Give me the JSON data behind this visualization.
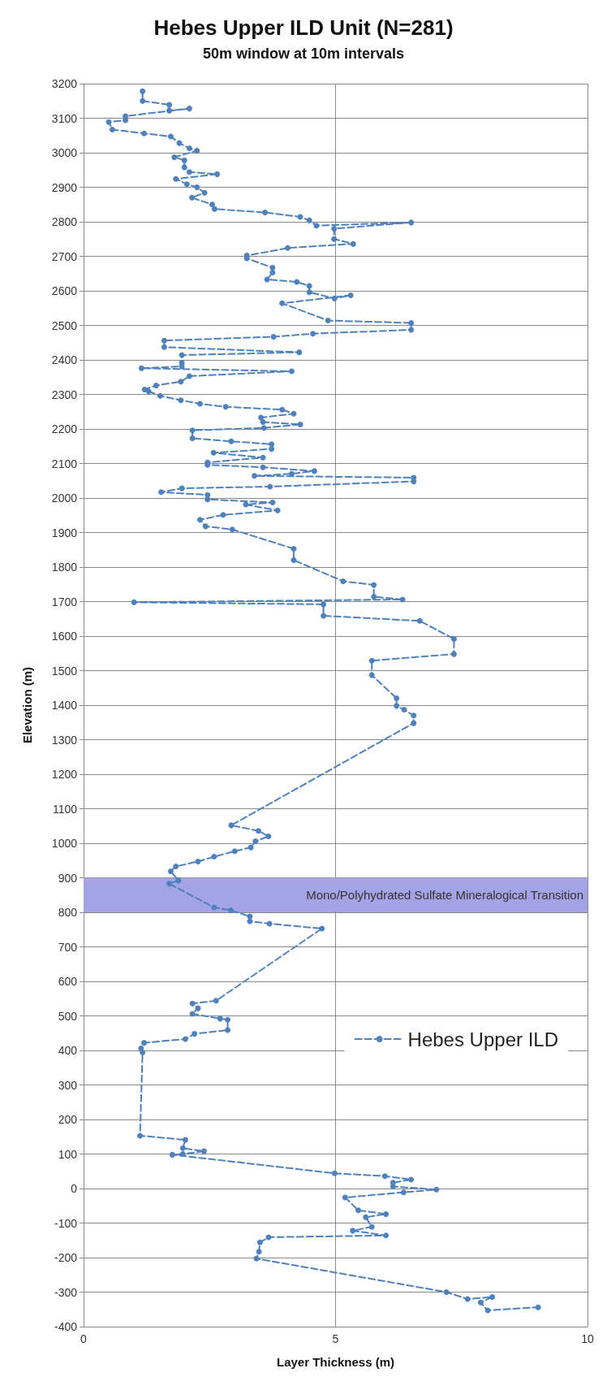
{
  "chart_data": {
    "type": "line",
    "title": "Hebes Upper ILD Unit (N=281)",
    "subtitle": "50m window at 10m intervals",
    "xlabel": "Layer Thickness (m)",
    "ylabel": "Elevation (m)",
    "xlim": [
      0,
      10
    ],
    "xticks": [
      0,
      5,
      10
    ],
    "ylim": [
      -400,
      3200
    ],
    "yticks": [
      -400,
      -300,
      -200,
      -100,
      0,
      100,
      200,
      300,
      400,
      500,
      600,
      700,
      800,
      900,
      1000,
      1100,
      1200,
      1300,
      1400,
      1500,
      1600,
      1700,
      1800,
      1900,
      2000,
      2100,
      2200,
      2300,
      2400,
      2500,
      2600,
      2700,
      2800,
      2900,
      3000,
      3100,
      3200
    ],
    "grid": true,
    "legend": "bottom right",
    "marker": "circle",
    "line_style": "dashed",
    "bands": [
      {
        "axis": "y",
        "from": 800,
        "to": 900,
        "label": "Mono/Polyhydrated Sulfate Mineralogical Transition",
        "color": "#a3a3e6"
      }
    ],
    "series": [
      {
        "name": "Hebes Upper ILD",
        "color": "#4f81bd",
        "x": [
          1.17,
          1.17,
          1.7,
          1.7,
          2.1,
          0.83,
          0.83,
          0.5,
          0.57,
          1.2,
          1.73,
          1.9,
          2.1,
          2.25,
          1.8,
          2.0,
          2.0,
          2.1,
          2.65,
          1.83,
          2.05,
          2.25,
          2.4,
          2.15,
          2.55,
          2.6,
          3.6,
          4.3,
          4.48,
          4.62,
          6.5,
          4.97,
          4.97,
          5.35,
          4.05,
          3.24,
          3.24,
          3.75,
          3.75,
          3.64,
          4.23,
          4.48,
          4.48,
          4.98,
          5.3,
          3.94,
          4.85,
          6.5,
          6.5,
          4.55,
          3.77,
          1.6,
          1.6,
          4.28,
          1.95,
          1.95,
          1.95,
          1.15,
          4.13,
          2.1,
          1.93,
          1.44,
          1.21,
          1.29,
          1.52,
          1.93,
          2.31,
          2.82,
          3.94,
          4.17,
          3.52,
          3.56,
          4.3,
          3.58,
          2.16,
          2.16,
          2.93,
          3.73,
          3.73,
          2.58,
          3.56,
          2.46,
          2.46,
          3.56,
          4.58,
          4.13,
          3.39,
          6.55,
          6.55,
          3.7,
          1.95,
          1.54,
          2.46,
          2.46,
          3.75,
          3.22,
          3.85,
          2.77,
          2.31,
          2.42,
          2.95,
          4.17,
          4.17,
          5.15,
          5.76,
          5.76,
          6.33,
          1.0,
          4.76,
          4.76,
          6.67,
          7.35,
          7.35,
          5.72,
          5.72,
          6.21,
          6.21,
          6.36,
          6.55,
          6.55,
          2.93,
          3.47,
          3.67,
          3.41,
          3.32,
          3.0,
          2.59,
          2.27,
          1.83,
          1.73,
          1.88,
          1.7,
          2.59,
          2.92,
          3.3,
          3.3,
          3.69,
          4.73,
          2.63,
          2.16,
          2.27,
          2.16,
          2.71,
          2.86,
          2.86,
          2.2,
          2.02,
          1.2,
          1.14,
          1.17,
          1.12,
          2.02,
          1.97,
          2.39,
          1.97,
          1.76,
          4.98,
          5.98,
          6.5,
          6.14,
          6.14,
          7.0,
          6.35,
          5.19,
          5.45,
          6.0,
          5.6,
          5.72,
          5.34,
          6.0,
          3.67,
          3.5,
          3.48,
          3.43,
          7.2,
          7.62,
          8.11,
          7.88,
          8.02,
          9.02
        ],
        "values": [
          3178,
          3150,
          3139,
          3122,
          3128,
          3106,
          3094,
          3089,
          3067,
          3056,
          3047,
          3028,
          3013,
          3006,
          2987,
          2978,
          2958,
          2944,
          2938,
          2924,
          2909,
          2900,
          2884,
          2870,
          2850,
          2837,
          2827,
          2814,
          2804,
          2789,
          2798,
          2780,
          2750,
          2736,
          2724,
          2702,
          2694,
          2667,
          2653,
          2633,
          2626,
          2614,
          2596,
          2578,
          2587,
          2564,
          2514,
          2507,
          2487,
          2476,
          2467,
          2456,
          2437,
          2422,
          2414,
          2392,
          2381,
          2376,
          2367,
          2353,
          2337,
          2326,
          2314,
          2309,
          2296,
          2283,
          2273,
          2264,
          2256,
          2244,
          2233,
          2220,
          2213,
          2203,
          2196,
          2173,
          2164,
          2156,
          2142,
          2131,
          2117,
          2103,
          2096,
          2089,
          2078,
          2070,
          2064,
          2059,
          2048,
          2033,
          2028,
          2017,
          2009,
          1996,
          1987,
          1981,
          1964,
          1951,
          1937,
          1918,
          1909,
          1853,
          1820,
          1759,
          1748,
          1714,
          1706,
          1698,
          1692,
          1659,
          1644,
          1592,
          1548,
          1529,
          1487,
          1420,
          1398,
          1387,
          1370,
          1348,
          1052,
          1036,
          1020,
          1006,
          988,
          977,
          961,
          947,
          933,
          919,
          892,
          883,
          814,
          806,
          788,
          774,
          767,
          753,
          544,
          536,
          522,
          506,
          492,
          489,
          459,
          448,
          433,
          422,
          406,
          394,
          153,
          141,
          117,
          108,
          100,
          98,
          44,
          36,
          26,
          17,
          6,
          -3,
          -11,
          -26,
          -63,
          -74,
          -83,
          -111,
          -122,
          -136,
          -141,
          -156,
          -183,
          -203,
          -300,
          -320,
          -314,
          -330,
          -353,
          -344
        ]
      }
    ]
  }
}
